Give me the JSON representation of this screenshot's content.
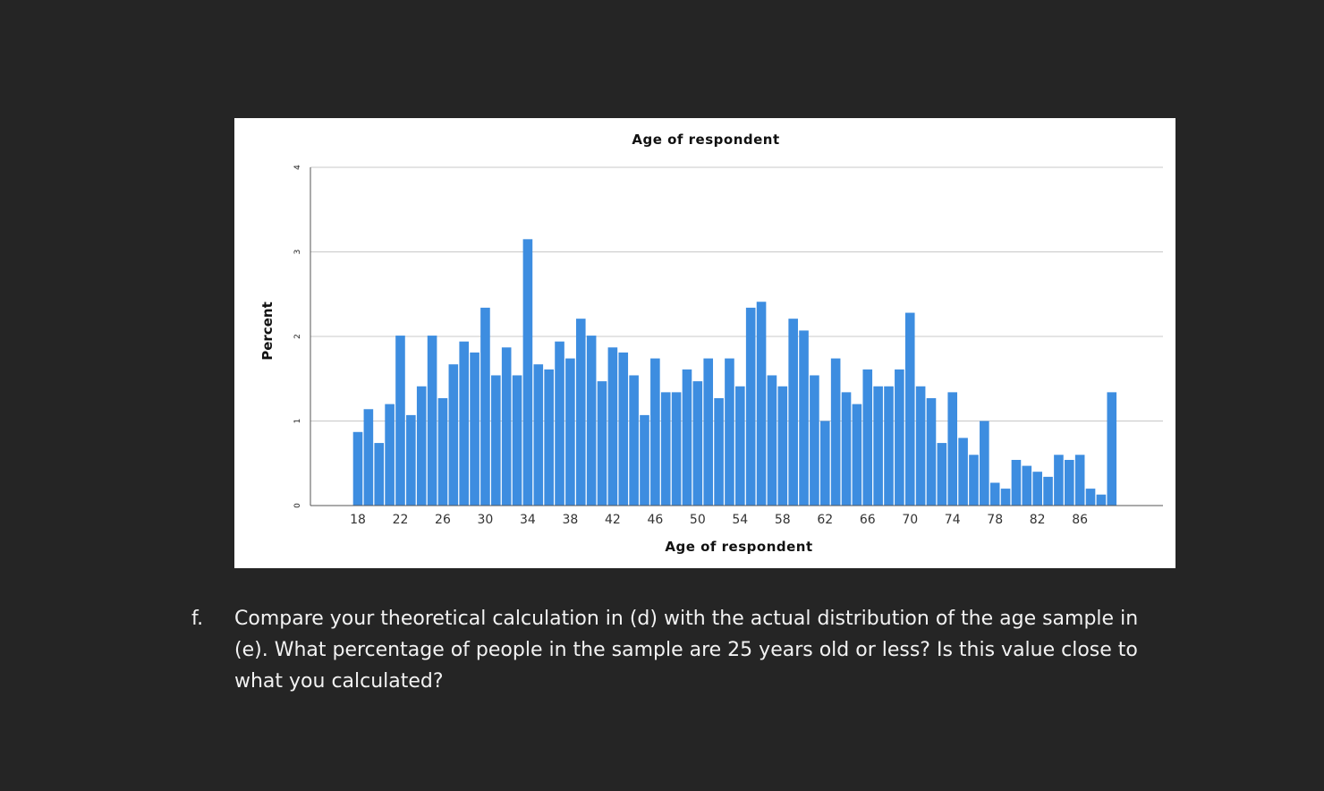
{
  "chart_data": {
    "type": "bar",
    "title": "Age of respondent",
    "xlabel": "Age of respondent",
    "ylabel": "Percent",
    "x": [
      18,
      19,
      20,
      21,
      22,
      23,
      24,
      25,
      26,
      27,
      28,
      29,
      30,
      31,
      32,
      33,
      34,
      35,
      36,
      37,
      38,
      39,
      40,
      41,
      42,
      43,
      44,
      45,
      46,
      47,
      48,
      49,
      50,
      51,
      52,
      53,
      54,
      55,
      56,
      57,
      58,
      59,
      60,
      61,
      62,
      63,
      64,
      65,
      66,
      67,
      68,
      69,
      70,
      71,
      72,
      73,
      74,
      75,
      76,
      77,
      78,
      79,
      80,
      81,
      82,
      83,
      84,
      85,
      86,
      87,
      88,
      89
    ],
    "values": [
      0.87,
      1.14,
      0.74,
      1.2,
      2.01,
      1.07,
      1.41,
      2.01,
      1.27,
      1.67,
      1.94,
      1.81,
      2.34,
      1.54,
      1.87,
      1.54,
      3.15,
      1.67,
      1.61,
      1.94,
      1.74,
      2.21,
      2.01,
      1.47,
      1.87,
      1.81,
      1.54,
      1.07,
      1.74,
      1.34,
      1.34,
      1.61,
      1.47,
      1.74,
      1.27,
      1.74,
      1.41,
      2.34,
      2.41,
      1.54,
      1.41,
      2.21,
      2.07,
      1.54,
      1.0,
      1.74,
      1.34,
      1.2,
      1.61,
      1.41,
      1.41,
      1.61,
      2.28,
      1.41,
      1.27,
      0.74,
      1.34,
      0.8,
      0.6,
      1.0,
      0.27,
      0.2,
      0.54,
      0.47,
      0.4,
      0.34,
      0.6,
      0.54,
      0.6,
      0.2,
      0.13,
      1.34
    ],
    "xticks": [
      "18",
      "22",
      "26",
      "30",
      "34",
      "38",
      "42",
      "46",
      "50",
      "54",
      "58",
      "62",
      "66",
      "70",
      "74",
      "78",
      "82",
      "86"
    ],
    "yticks": [
      "0",
      "1",
      "2",
      "3",
      "4"
    ],
    "ylim": [
      0,
      4
    ],
    "grid": true,
    "bar_color": "#3d8de0"
  },
  "question": {
    "letter": "f.",
    "text": "Compare your theoretical calculation in (d) with the actual distribution of the age sample in (e).  What percentage of people in the sample are 25 years old or less?  Is this value close to what you calculated?"
  }
}
